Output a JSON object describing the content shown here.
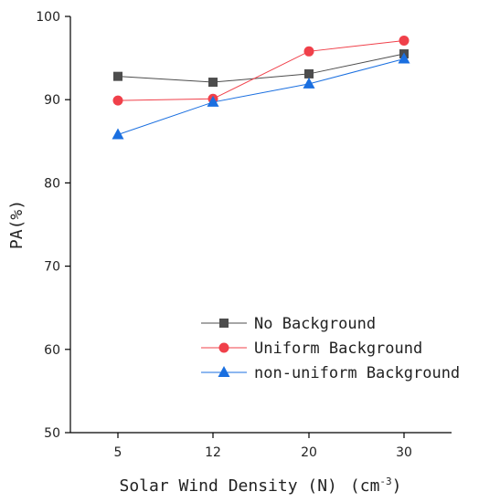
{
  "chart_data": {
    "type": "line",
    "categories": [
      "5",
      "12",
      "20",
      "30"
    ],
    "series": [
      {
        "name": "No Background",
        "values": [
          92.8,
          92.1,
          93.1,
          95.5
        ],
        "color": "#4d4d4d",
        "marker": "square"
      },
      {
        "name": "Uniform Background",
        "values": [
          89.9,
          90.1,
          95.8,
          97.1
        ],
        "color": "#f0404a",
        "marker": "circle"
      },
      {
        "name": "non-uniform Background",
        "values": [
          85.8,
          89.7,
          91.9,
          94.9
        ],
        "color": "#1a6fe0",
        "marker": "triangle"
      }
    ],
    "xlabel": "Solar Wind Density (N)",
    "xlabel_unit_base": "(cm",
    "xlabel_unit_exp": "-3",
    "xlabel_unit_close": ")",
    "ylabel": "PA(%)",
    "ylim": [
      50,
      100
    ],
    "yticks": [
      50,
      60,
      70,
      80,
      90,
      100
    ],
    "grid": false,
    "legend_position": "bottom-right"
  }
}
